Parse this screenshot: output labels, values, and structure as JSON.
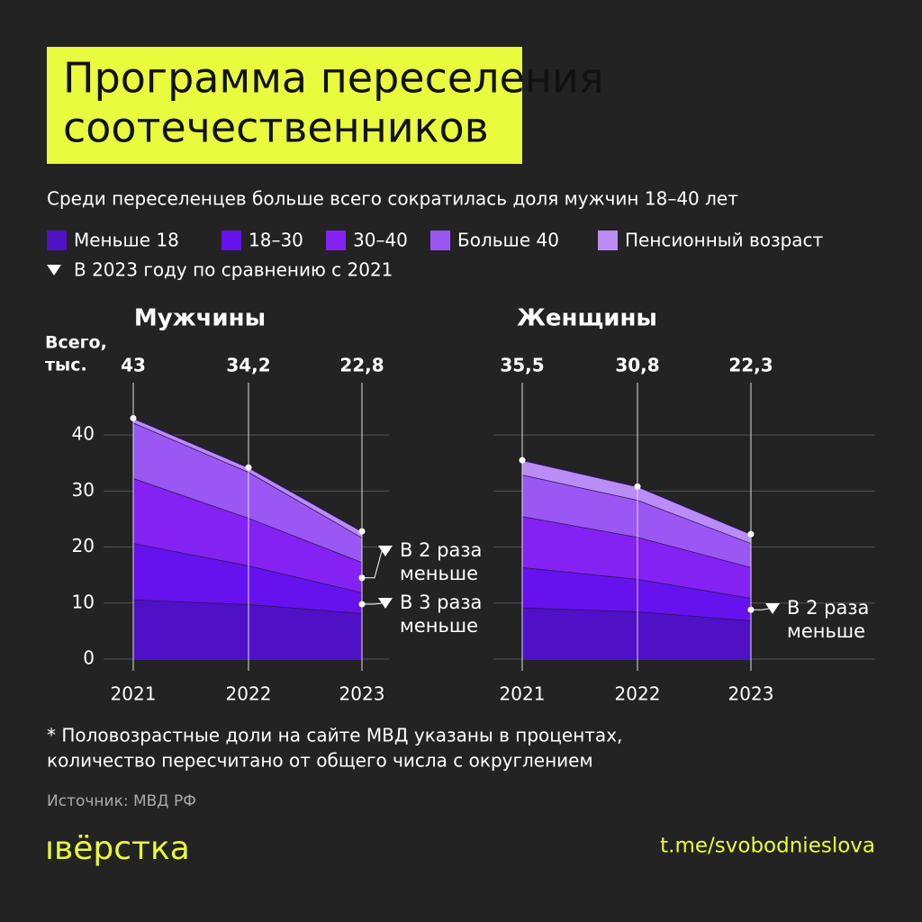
{
  "title": [
    "Программа переселения",
    "соотечественников"
  ],
  "subtitle": "Среди переселенцев больше всего сократилась доля мужчин 18–40 лет",
  "legend_note": "В 2023 году по сравнению с 2021",
  "totals_label": [
    "Всего,",
    "тыс."
  ],
  "footnote": [
    "* Половозрастные доли на сайте МВД указаны в процентах,",
    "количество пересчитано от общего числа с округлением"
  ],
  "source": "Источник: МВД РФ",
  "logo": "ıвёрстка",
  "link": "t.me/svobodnieslova",
  "chart_data": [
    {
      "type": "stacked-area",
      "title": "Мужчины",
      "categories": [
        "2021",
        "2022",
        "2023"
      ],
      "totals": [
        43,
        34.2,
        22.8
      ],
      "total_labels": [
        "43",
        "34,2",
        "22,8"
      ],
      "ylim": [
        0,
        45
      ],
      "yticks": [
        0,
        10,
        20,
        30,
        40
      ],
      "grid": true,
      "series": [
        {
          "name": "Меньше 18",
          "color": "#4f10c6",
          "values": [
            10.6,
            9.8,
            8.2
          ]
        },
        {
          "name": "18–30",
          "color": "#6512ee",
          "values": [
            10.1,
            6.9,
            3.7
          ]
        },
        {
          "name": "30–40",
          "color": "#8322f2",
          "values": [
            11.6,
            8.5,
            5.4
          ]
        },
        {
          "name": "Больше 40",
          "color": "#9b57f3",
          "values": [
            9.9,
            8.2,
            4.4
          ]
        },
        {
          "name": "Пенсионный возраст",
          "color": "#b98cf6",
          "values": [
            0.8,
            0.8,
            1.1
          ]
        }
      ],
      "annotations": [
        [
          "В 2 раза",
          "меньше"
        ],
        [
          "В 3 раза",
          "меньше"
        ]
      ]
    },
    {
      "type": "stacked-area",
      "title": "Женщины",
      "categories": [
        "2021",
        "2022",
        "2023"
      ],
      "totals": [
        35.5,
        30.8,
        22.3
      ],
      "total_labels": [
        "35,5",
        "30,8",
        "22,3"
      ],
      "ylim": [
        0,
        45
      ],
      "series": [
        {
          "color": "#4f10c6",
          "values": [
            9.2,
            8.5,
            6.9
          ]
        },
        {
          "color": "#6512ee",
          "values": [
            7.2,
            5.8,
            4.0
          ]
        },
        {
          "color": "#8322f2",
          "values": [
            9.1,
            7.5,
            5.5
          ]
        },
        {
          "color": "#9b57f3",
          "values": [
            7.4,
            6.6,
            4.3
          ]
        },
        {
          "color": "#b98cf6",
          "values": [
            2.6,
            2.4,
            1.6
          ]
        }
      ],
      "annotations": [
        [
          "В 2 раза",
          "меньше"
        ]
      ]
    }
  ]
}
